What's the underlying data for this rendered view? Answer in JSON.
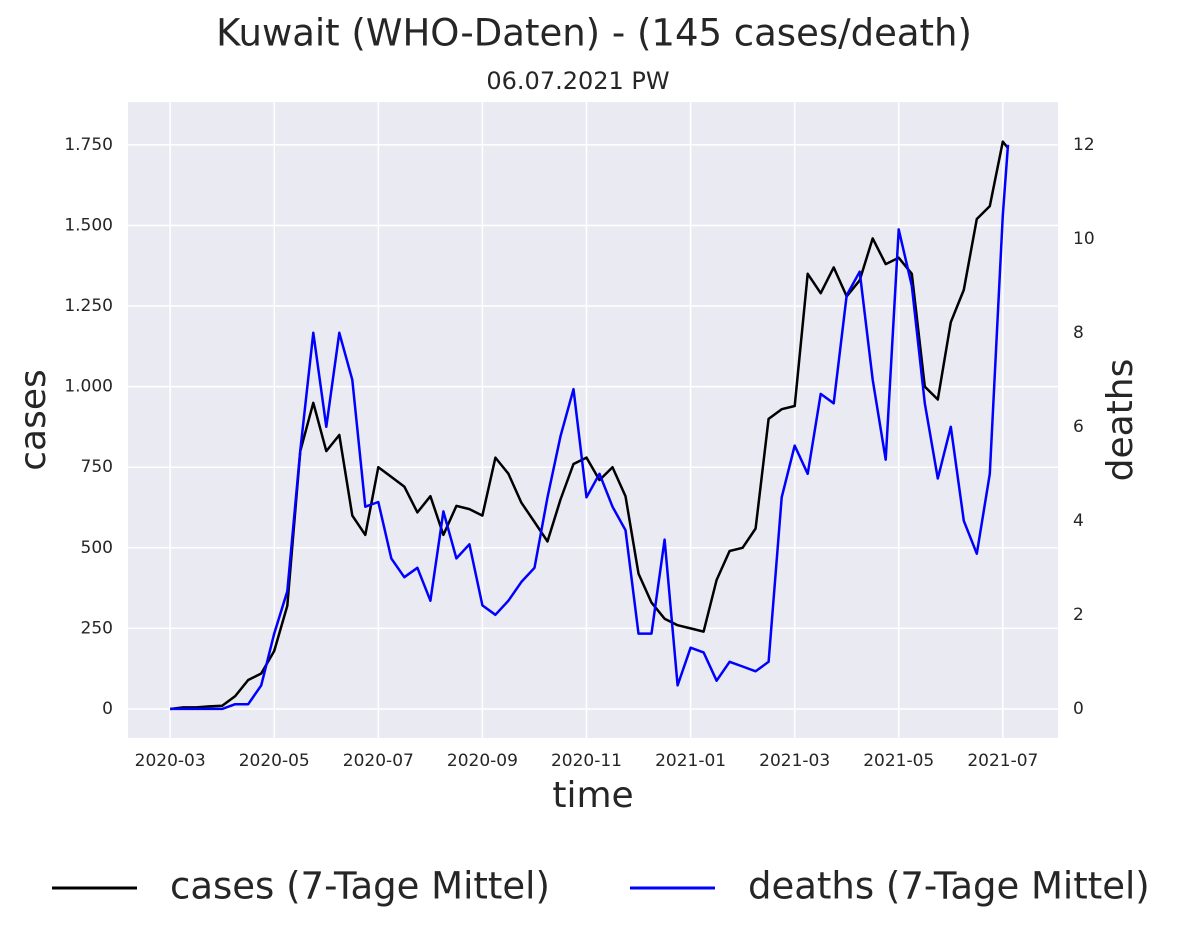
{
  "chart_data": {
    "type": "line",
    "title": "Kuwait (WHO-Daten) - (145 cases/death)",
    "subtitle": "06.07.2021 PW",
    "x_label": "time",
    "y_label": "cases",
    "y2_label": "deaths",
    "x": [
      0,
      0.25,
      0.5,
      0.75,
      1,
      1.25,
      1.5,
      1.75,
      2,
      2.25,
      2.5,
      2.75,
      3,
      3.25,
      3.5,
      3.75,
      4,
      4.25,
      4.5,
      4.75,
      5,
      5.25,
      5.5,
      5.75,
      6,
      6.25,
      6.5,
      6.75,
      7,
      7.25,
      7.5,
      7.75,
      8,
      8.25,
      8.5,
      8.75,
      9,
      9.25,
      9.5,
      9.75,
      10,
      10.25,
      10.5,
      10.75,
      11,
      11.25,
      11.5,
      11.75,
      12,
      12.25,
      12.5,
      12.75,
      13,
      13.25,
      13.5,
      13.75,
      14,
      14.25,
      14.5,
      14.75,
      15,
      15.25,
      15.5,
      15.75,
      16,
      16.1
    ],
    "xlim": [
      -0.81,
      17.06
    ],
    "xticks": [
      {
        "value": 0,
        "label": "2020-03"
      },
      {
        "value": 2,
        "label": "2020-05"
      },
      {
        "value": 4,
        "label": "2020-07"
      },
      {
        "value": 6,
        "label": "2020-09"
      },
      {
        "value": 8,
        "label": "2020-11"
      },
      {
        "value": 10,
        "label": "2021-01"
      },
      {
        "value": 12,
        "label": "2021-03"
      },
      {
        "value": 14,
        "label": "2021-05"
      },
      {
        "value": 16,
        "label": "2021-07"
      }
    ],
    "ylim": [
      -90,
      1883
    ],
    "yticks": [
      0,
      250,
      500,
      750,
      {
        "value": 1000,
        "label": "1.000"
      },
      {
        "value": 1250,
        "label": "1.250"
      },
      {
        "value": 1500,
        "label": "1.500"
      },
      {
        "value": 1750,
        "label": "1.750"
      }
    ],
    "y2lim": [
      -0.62,
      12.91
    ],
    "y2ticks": [
      0,
      2,
      4,
      6,
      8,
      10,
      12
    ],
    "y2_color": "#0000ff",
    "grid": true,
    "legend": "bottom",
    "series": [
      {
        "name": "cases (7-Tage Mittel)",
        "color": "#000000",
        "values": [
          0,
          5,
          5,
          8,
          10,
          40,
          90,
          110,
          180,
          320,
          800,
          950,
          800,
          850,
          600,
          540,
          750,
          720,
          690,
          610,
          660,
          540,
          630,
          620,
          600,
          780,
          730,
          640,
          580,
          520,
          650,
          760,
          780,
          710,
          750,
          660,
          420,
          330,
          280,
          260,
          250,
          240,
          400,
          490,
          500,
          560,
          900,
          930,
          940,
          1350,
          1290,
          1370,
          1280,
          1330,
          1460,
          1380,
          1400,
          1350,
          1000,
          960,
          1200,
          1300,
          1520,
          1560,
          1760,
          1740
        ]
      },
      {
        "name": "deaths (7-Tage Mittel)",
        "color": "#0000ff",
        "axis": "y2",
        "values": [
          0,
          0,
          0,
          0,
          0,
          0.1,
          0.1,
          0.5,
          1.6,
          2.5,
          5.5,
          8,
          6,
          8,
          7,
          4.3,
          4.4,
          3.2,
          2.8,
          3,
          2.3,
          4.2,
          3.2,
          3.5,
          2.2,
          2,
          2.3,
          2.7,
          3,
          4.5,
          5.8,
          6.8,
          4.5,
          5,
          4.3,
          3.8,
          1.6,
          1.6,
          3.6,
          0.5,
          1.3,
          1.2,
          0.6,
          1,
          0.9,
          0.8,
          1,
          4.5,
          5.6,
          5,
          6.7,
          6.5,
          8.8,
          9.3,
          7,
          5.3,
          10.2,
          9,
          6.5,
          4.9,
          6,
          4,
          3.3,
          5,
          10.5,
          12
        ]
      }
    ]
  }
}
